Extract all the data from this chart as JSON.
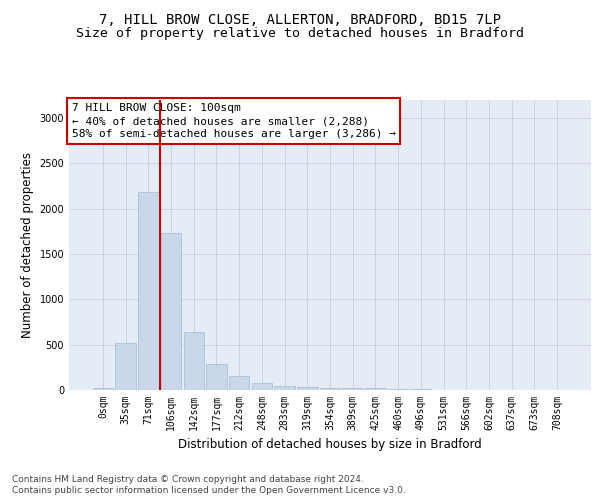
{
  "title_line1": "7, HILL BROW CLOSE, ALLERTON, BRADFORD, BD15 7LP",
  "title_line2": "Size of property relative to detached houses in Bradford",
  "xlabel": "Distribution of detached houses by size in Bradford",
  "ylabel": "Number of detached properties",
  "categories": [
    "0sqm",
    "35sqm",
    "71sqm",
    "106sqm",
    "142sqm",
    "177sqm",
    "212sqm",
    "248sqm",
    "283sqm",
    "319sqm",
    "354sqm",
    "389sqm",
    "425sqm",
    "460sqm",
    "496sqm",
    "531sqm",
    "566sqm",
    "602sqm",
    "637sqm",
    "673sqm",
    "708sqm"
  ],
  "values": [
    20,
    520,
    2190,
    1730,
    635,
    290,
    150,
    80,
    45,
    35,
    25,
    20,
    20,
    15,
    10,
    5,
    5,
    3,
    2,
    2,
    2
  ],
  "bar_color": "#c8d8ea",
  "bar_edgecolor": "#a0bcd0",
  "vline_color": "#cc0000",
  "vline_xindex": 2.5,
  "annotation_text": "7 HILL BROW CLOSE: 100sqm\n← 40% of detached houses are smaller (2,288)\n58% of semi-detached houses are larger (3,286) →",
  "annotation_box_facecolor": "#ffffff",
  "annotation_box_edgecolor": "#cc0000",
  "ylim": [
    0,
    3200
  ],
  "yticks": [
    0,
    500,
    1000,
    1500,
    2000,
    2500,
    3000
  ],
  "grid_color": "#c8d4e4",
  "background_color": "#e4ecf6",
  "footer_line1": "Contains HM Land Registry data © Crown copyright and database right 2024.",
  "footer_line2": "Contains public sector information licensed under the Open Government Licence v3.0.",
  "title_fontsize": 10,
  "subtitle_fontsize": 9.5,
  "axis_label_fontsize": 8.5,
  "tick_fontsize": 7,
  "annotation_fontsize": 8,
  "footer_fontsize": 6.5
}
